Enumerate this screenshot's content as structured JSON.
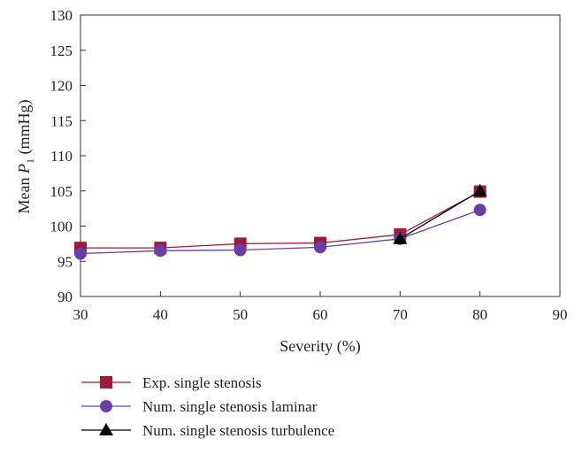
{
  "chart_data": {
    "type": "line",
    "xlabel": "Severity (%)",
    "ylabel": {
      "prefix": "Mean ",
      "var": "P",
      "sub": "1",
      "suffix": " (mmHg)"
    },
    "xlim": [
      30,
      90
    ],
    "ylim": [
      90,
      130
    ],
    "xticks": [
      30,
      40,
      50,
      60,
      70,
      80,
      90
    ],
    "yticks": [
      90,
      95,
      100,
      105,
      110,
      115,
      120,
      125,
      130
    ],
    "grid": false,
    "legend_position": "bottom-left",
    "series": [
      {
        "name": "Exp. single stenosis",
        "color": "#9e1a3c",
        "marker": "square",
        "x": [
          30,
          40,
          50,
          60,
          70,
          80
        ],
        "y": [
          96.9,
          96.9,
          97.5,
          97.6,
          98.8,
          104.9
        ]
      },
      {
        "name": "Num. single stenosis laminar",
        "color": "#6a3fa5",
        "marker": "circle",
        "x": [
          30,
          40,
          50,
          60,
          70,
          80
        ],
        "y": [
          96.1,
          96.5,
          96.6,
          97.0,
          98.2,
          102.3
        ]
      },
      {
        "name": "Num. single stenosis turbulence",
        "color": "#000000",
        "marker": "triangle",
        "x": [
          70,
          80
        ],
        "y": [
          98.2,
          105.0
        ]
      }
    ]
  }
}
